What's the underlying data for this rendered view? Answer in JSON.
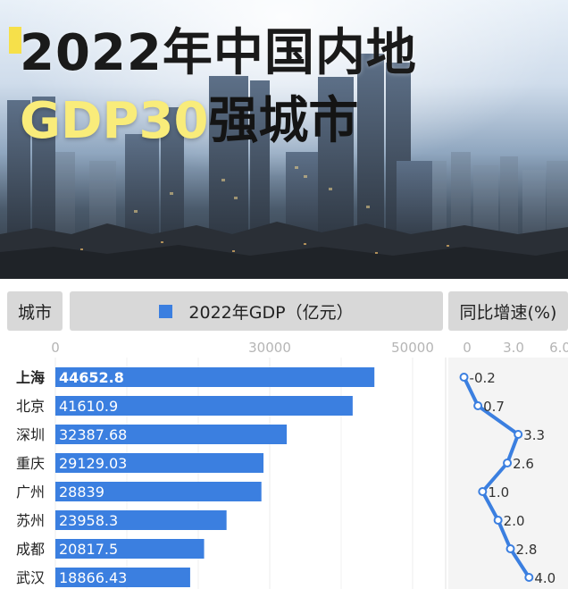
{
  "banner": {
    "title_line1": "2022年中国内地",
    "title_line2_highlight": "GDP30",
    "title_line2_rest": "强城市"
  },
  "header": {
    "city": "城市",
    "gdp": "2022年GDP（亿元）",
    "growth": "同比增速(%)"
  },
  "colors": {
    "bar": "#3b7fe0",
    "growth_line": "#3b7fe0",
    "title_highlight": "#f9ec7a",
    "title_mark": "#f6e04a"
  },
  "chart_data": [
    {
      "type": "bar",
      "orientation": "horizontal",
      "categories": [
        "上海",
        "北京",
        "深圳",
        "重庆",
        "广州",
        "苏州",
        "成都",
        "武汉"
      ],
      "values": [
        44652.8,
        41610.9,
        32387.68,
        29129.03,
        28839,
        23958.3,
        20817.5,
        18866.43
      ],
      "value_labels": [
        "44652.8",
        "41610.9",
        "32387.68",
        "29129.03",
        "28839",
        "23958.3",
        "20817.5",
        "18866.43"
      ],
      "xlim": [
        0,
        50000
      ],
      "xticks": [
        0,
        30000,
        50000
      ],
      "xtick_labels": [
        "0",
        "30000",
        "50000"
      ],
      "grid": true
    },
    {
      "type": "line",
      "orientation": "vertical",
      "categories": [
        "上海",
        "北京",
        "深圳",
        "重庆",
        "广州",
        "苏州",
        "成都",
        "武汉"
      ],
      "values": [
        -0.2,
        0.7,
        3.3,
        2.6,
        1.0,
        2.0,
        2.8,
        4.0
      ],
      "value_labels": [
        "-0.2",
        "0.7",
        "3.3",
        "2.6",
        "1.0",
        "2.0",
        "2.8",
        "4.0"
      ],
      "xlim": [
        0,
        6.0
      ],
      "xticks": [
        0,
        3.0,
        6.0
      ],
      "xtick_labels": [
        "0",
        "3.0",
        "6.0"
      ]
    }
  ]
}
